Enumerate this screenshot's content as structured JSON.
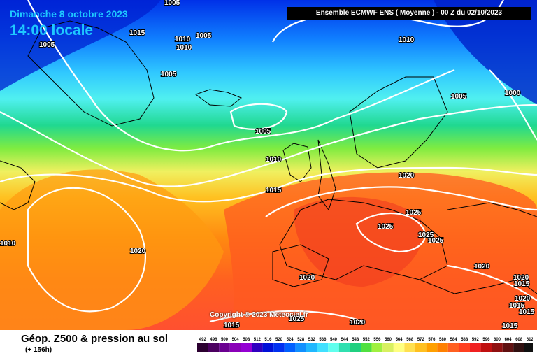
{
  "header": {
    "model_run": "Ensemble ECMWF ENS  ( Moyenne )  -  00 Z du 02/10/2023",
    "date": "Dimanche 8 octobre 2023",
    "time": "14:00 locale"
  },
  "copyright": "Copyright © 2023 Meteociel.fr",
  "footer": {
    "title": "Géop. Z500 & pression au sol",
    "subtitle": "(+ 156h)"
  },
  "scale": {
    "labels": [
      "492",
      "496",
      "500",
      "504",
      "508",
      "512",
      "516",
      "520",
      "524",
      "528",
      "532",
      "536",
      "540",
      "544",
      "548",
      "552",
      "556",
      "560",
      "564",
      "568",
      "572",
      "576",
      "580",
      "584",
      "588",
      "592",
      "596",
      "600",
      "604",
      "608",
      "612"
    ],
    "colors": [
      "#2b0030",
      "#4b0060",
      "#6a0090",
      "#8a00b8",
      "#9400d3",
      "#3000c0",
      "#0010d8",
      "#0030f0",
      "#0060ff",
      "#1090ff",
      "#20b8ff",
      "#40e0ff",
      "#60ffee",
      "#30e0b0",
      "#20d080",
      "#50e040",
      "#a0f040",
      "#d8f060",
      "#ffff80",
      "#ffe050",
      "#ffc020",
      "#ffa000",
      "#ff8000",
      "#ff6020",
      "#ff4020",
      "#f02020",
      "#c01010",
      "#901010",
      "#601010",
      "#301010",
      "#101010"
    ]
  },
  "isobar_labels": [
    {
      "text": "1005"
    },
    {
      "text": "1015"
    },
    {
      "text": "1005"
    },
    {
      "text": "1010"
    },
    {
      "text": "1010"
    },
    {
      "text": "1005"
    },
    {
      "text": "1005"
    },
    {
      "text": "1005"
    },
    {
      "text": "1010"
    },
    {
      "text": "1015"
    },
    {
      "text": "1010"
    },
    {
      "text": "1005"
    },
    {
      "text": "1000"
    },
    {
      "text": "1020"
    },
    {
      "text": "1025"
    },
    {
      "text": "1025"
    },
    {
      "text": "1025"
    },
    {
      "text": "1025"
    },
    {
      "text": "1020"
    },
    {
      "text": "1020"
    },
    {
      "text": "1020"
    },
    {
      "text": "1015"
    },
    {
      "text": "1015"
    },
    {
      "text": "1015"
    },
    {
      "text": "1015"
    },
    {
      "text": "1015"
    },
    {
      "text": "1020"
    },
    {
      "text": "1025"
    },
    {
      "text": "1020"
    },
    {
      "text": "1010"
    },
    {
      "text": "1020"
    }
  ]
}
